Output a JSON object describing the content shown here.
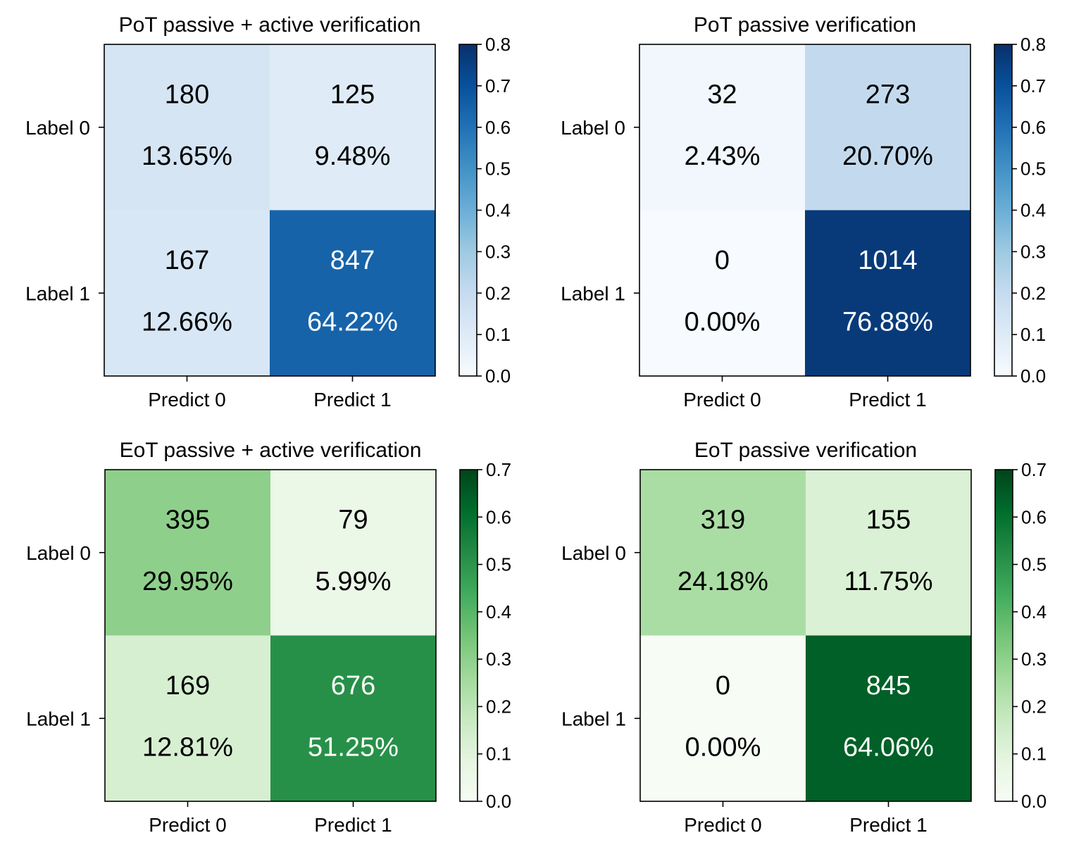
{
  "chart_data": [
    {
      "type": "heatmap",
      "title": "PoT passive + active verification",
      "x_categories": [
        "Predict 0",
        "Predict 1"
      ],
      "y_categories": [
        "Label 0",
        "Label 1"
      ],
      "counts": [
        [
          180,
          125
        ],
        [
          167,
          847
        ]
      ],
      "percentages": [
        [
          "13.65%",
          "9.48%"
        ],
        [
          "12.66%",
          "64.22%"
        ]
      ],
      "values": [
        [
          0.1365,
          0.0948
        ],
        [
          0.1266,
          0.6422
        ]
      ],
      "colormap": "Blues",
      "colorbar_range": [
        0,
        0.8
      ],
      "colorbar_ticks": [
        "0.0",
        "0.1",
        "0.2",
        "0.3",
        "0.4",
        "0.5",
        "0.6",
        "0.7",
        "0.8"
      ]
    },
    {
      "type": "heatmap",
      "title": "PoT passive verification",
      "x_categories": [
        "Predict 0",
        "Predict 1"
      ],
      "y_categories": [
        "Label 0",
        "Label 1"
      ],
      "counts": [
        [
          32,
          273
        ],
        [
          0,
          1014
        ]
      ],
      "percentages": [
        [
          "2.43%",
          "20.70%"
        ],
        [
          "0.00%",
          "76.88%"
        ]
      ],
      "values": [
        [
          0.0243,
          0.207
        ],
        [
          0.0,
          0.7688
        ]
      ],
      "colormap": "Blues",
      "colorbar_range": [
        0,
        0.8
      ],
      "colorbar_ticks": [
        "0.0",
        "0.1",
        "0.2",
        "0.3",
        "0.4",
        "0.5",
        "0.6",
        "0.7",
        "0.8"
      ]
    },
    {
      "type": "heatmap",
      "title": "EoT passive + active verification",
      "x_categories": [
        "Predict 0",
        "Predict 1"
      ],
      "y_categories": [
        "Label 0",
        "Label 1"
      ],
      "counts": [
        [
          395,
          79
        ],
        [
          169,
          676
        ]
      ],
      "percentages": [
        [
          "29.95%",
          "5.99%"
        ],
        [
          "12.81%",
          "51.25%"
        ]
      ],
      "values": [
        [
          0.2995,
          0.0599
        ],
        [
          0.1281,
          0.5125
        ]
      ],
      "colormap": "Greens",
      "colorbar_range": [
        0,
        0.7
      ],
      "colorbar_ticks": [
        "0.0",
        "0.1",
        "0.2",
        "0.3",
        "0.4",
        "0.5",
        "0.6",
        "0.7"
      ]
    },
    {
      "type": "heatmap",
      "title": "EoT passive verification",
      "x_categories": [
        "Predict 0",
        "Predict 1"
      ],
      "y_categories": [
        "Label 0",
        "Label 1"
      ],
      "counts": [
        [
          319,
          155
        ],
        [
          0,
          845
        ]
      ],
      "percentages": [
        [
          "24.18%",
          "11.75%"
        ],
        [
          "0.00%",
          "64.06%"
        ]
      ],
      "values": [
        [
          0.2418,
          0.1175
        ],
        [
          0.0,
          0.6406
        ]
      ],
      "colormap": "Greens",
      "colorbar_range": [
        0,
        0.7
      ],
      "colorbar_ticks": [
        "0.0",
        "0.1",
        "0.2",
        "0.3",
        "0.4",
        "0.5",
        "0.6",
        "0.7"
      ]
    }
  ],
  "colormaps": {
    "Blues": [
      "#f7fbff",
      "#deebf7",
      "#c6dbef",
      "#9ecae1",
      "#6baed6",
      "#4292c6",
      "#2171b5",
      "#08519c",
      "#08306b"
    ],
    "Greens": [
      "#f7fcf5",
      "#e5f5e0",
      "#c7e9c0",
      "#a1d99b",
      "#74c476",
      "#41ab5d",
      "#238b45",
      "#006d2c",
      "#00441b"
    ]
  }
}
